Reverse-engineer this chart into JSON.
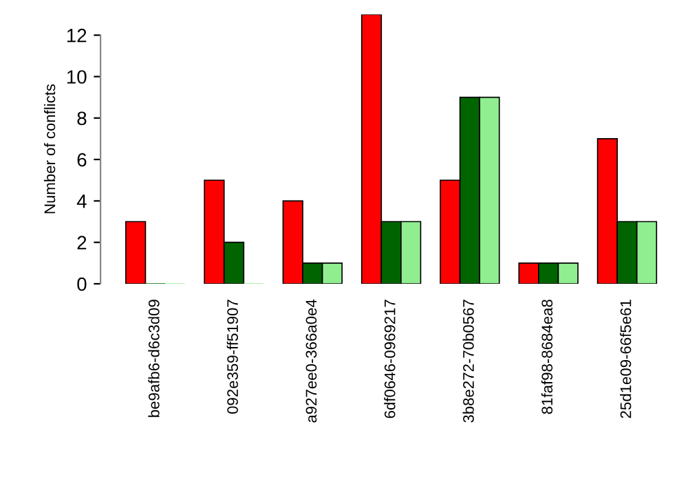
{
  "chart_data": {
    "type": "bar",
    "ylabel": "Number of conflicts",
    "categories": [
      "be9afb6-d6c3d09",
      "092e359-ff51907",
      "a927ee0-366a0e4",
      "6df0646-0969217",
      "3b8e272-70b0567",
      "81faf98-8684ea8",
      "25d1e09-66f5e61"
    ],
    "series": [
      {
        "color": "#ff0000",
        "values": [
          3,
          5,
          4,
          13,
          5,
          1,
          7
        ]
      },
      {
        "color": "#006400",
        "values": [
          0,
          2,
          1,
          3,
          9,
          1,
          3
        ]
      },
      {
        "color": "#90ee90",
        "values": [
          0,
          0,
          1,
          3,
          9,
          1,
          3
        ]
      }
    ],
    "ylim": [
      0,
      13
    ],
    "yticks": [
      0,
      2,
      4,
      6,
      8,
      10,
      12
    ],
    "grid": false
  }
}
